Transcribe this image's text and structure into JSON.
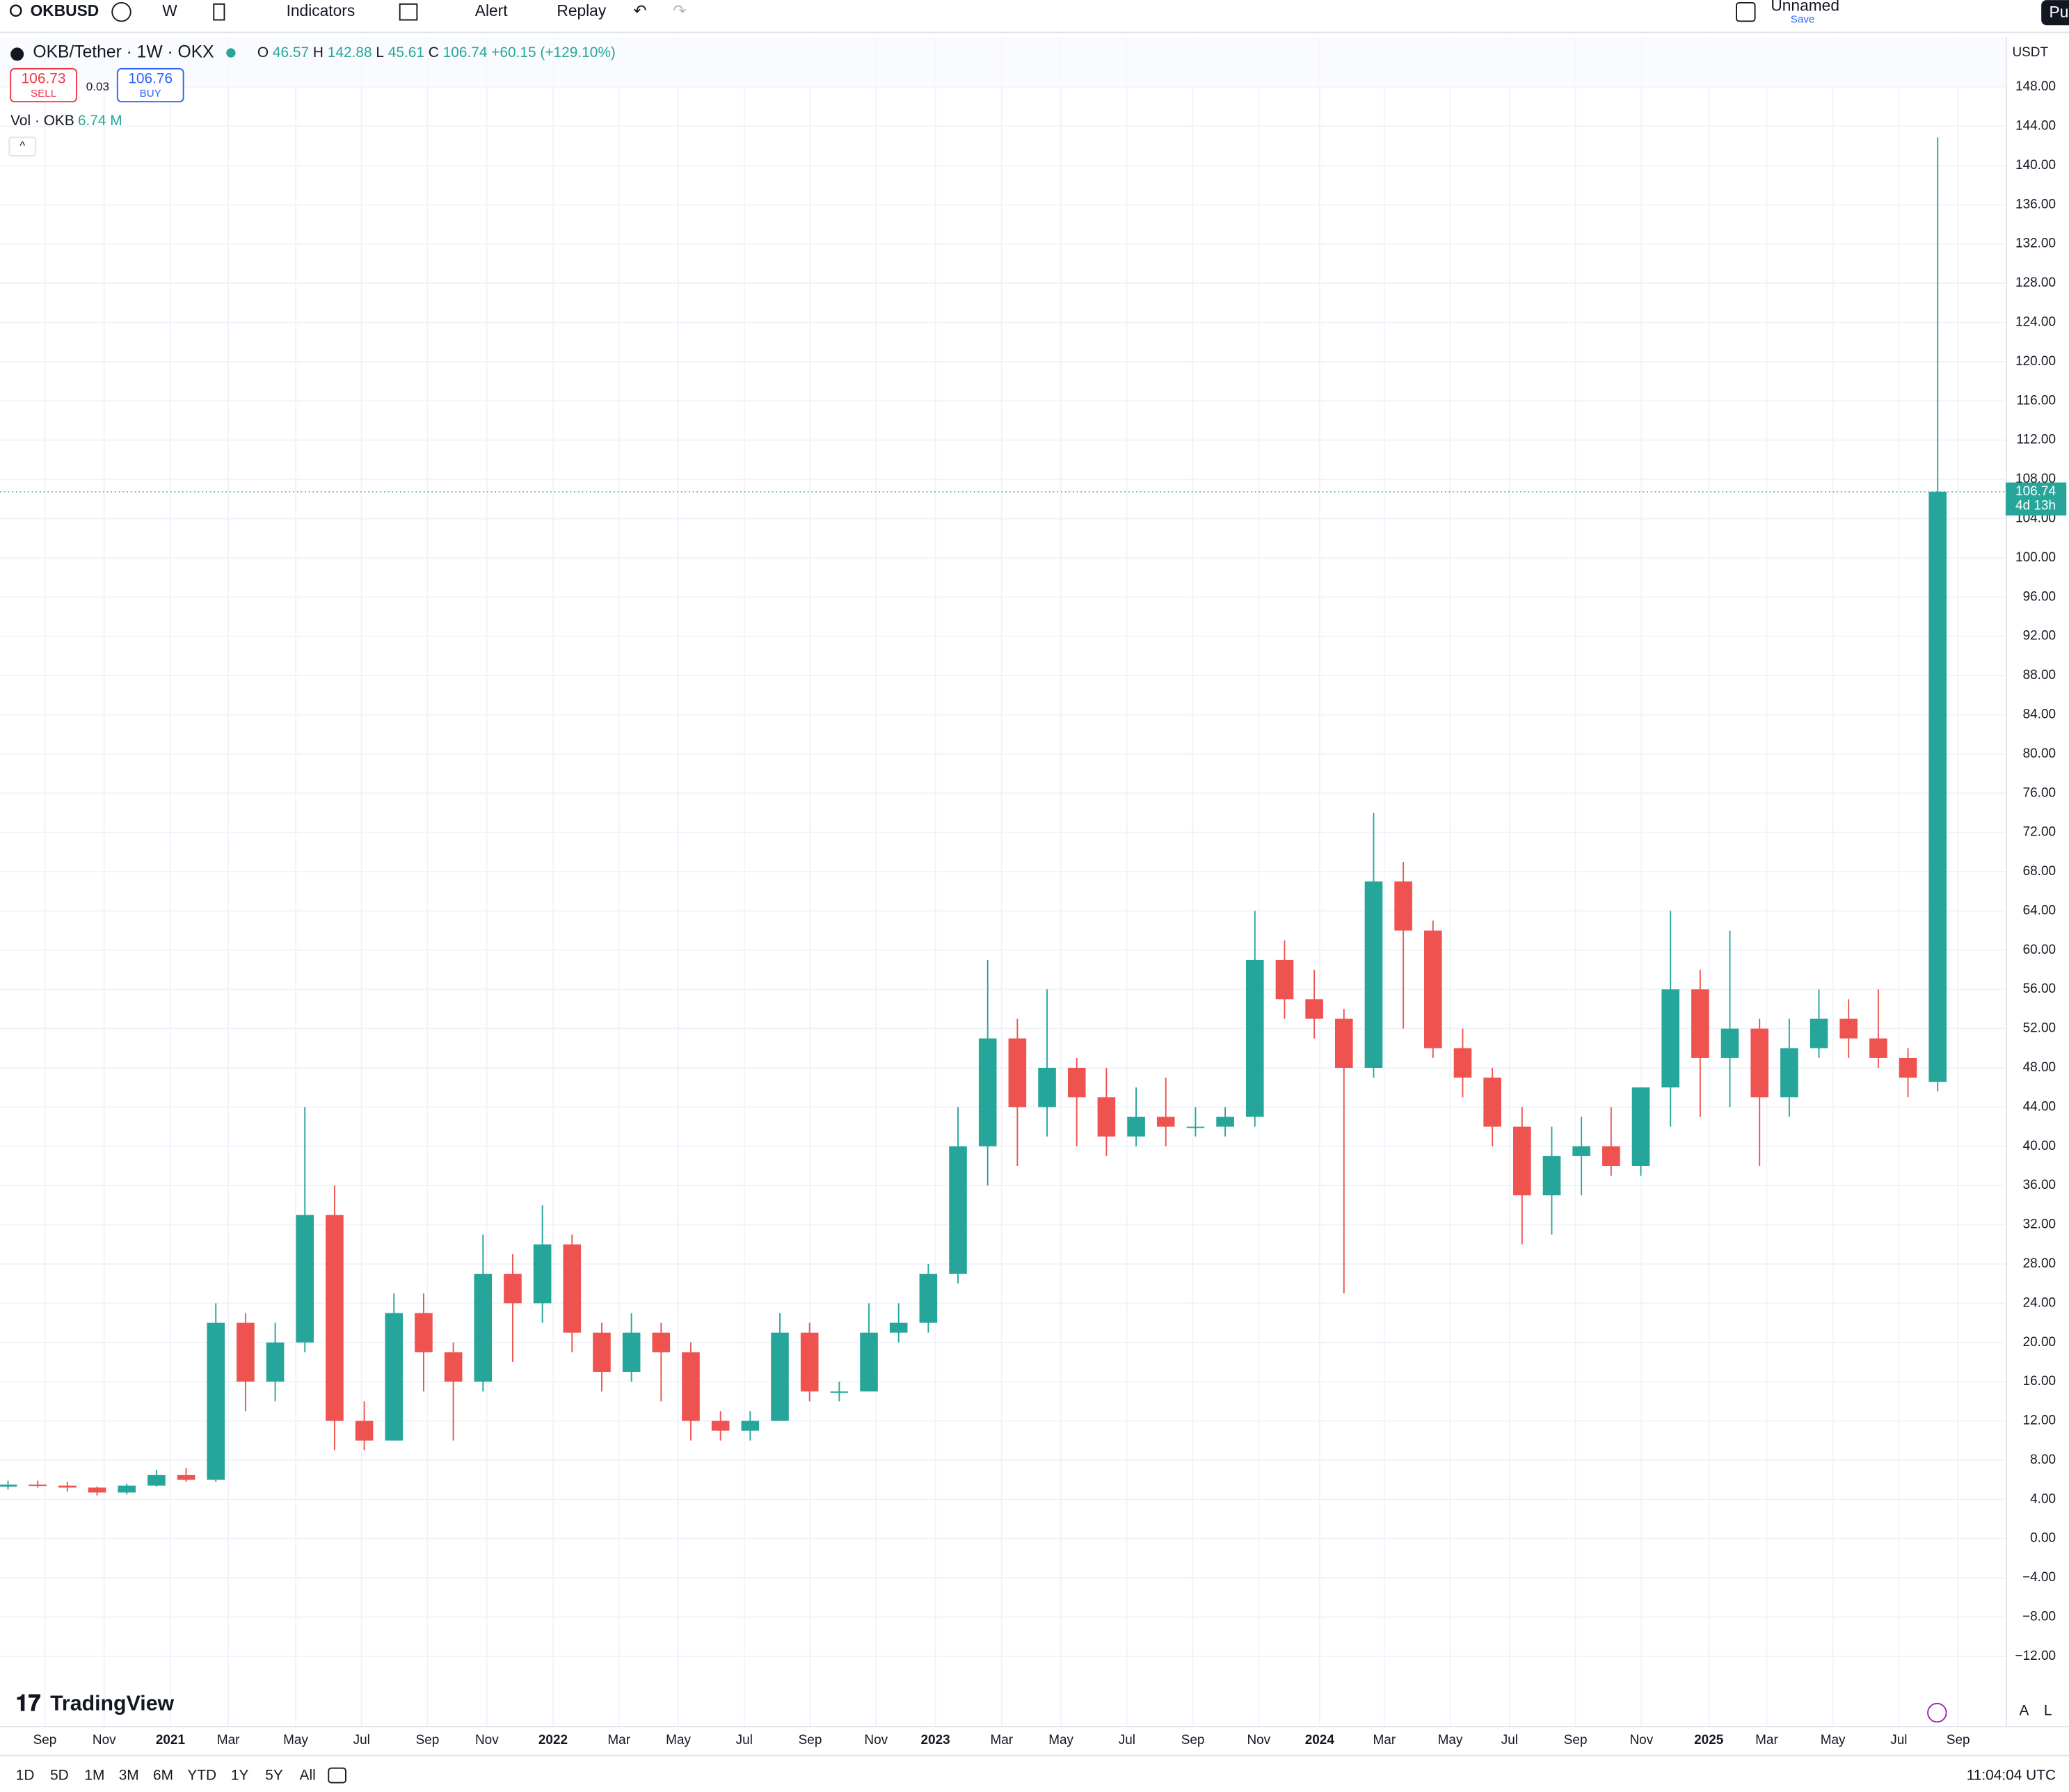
{
  "toolbar": {
    "symbol": "OKBUSD",
    "interval": "W",
    "indicators": "Indicators",
    "alert": "Alert",
    "replay": "Replay",
    "layout_name": "Unnamed",
    "layout_save": "Save",
    "publish": "Pu"
  },
  "legend": {
    "title": "OKB/Tether · 1W · OKX",
    "open_label": "O",
    "high_label": "H",
    "low_label": "L",
    "close_label": "C",
    "change": "+60.15 (+129.10%)",
    "sell_price": "106.73",
    "sell": "SELL",
    "spread": "0.03",
    "buy_price": "106.76",
    "buy": "BUY",
    "volume_label": "Vol · OKB",
    "volume": "6.74 M"
  },
  "price_axis": {
    "currency": "USDT",
    "countdown": "4d 13h"
  },
  "ranges": [
    "1D",
    "5D",
    "1M",
    "3M",
    "6M",
    "YTD",
    "1Y",
    "5Y",
    "All"
  ],
  "scale_buttons": [
    "A",
    "L"
  ],
  "logo": "TradingView",
  "clock": "11:04:04 UTC",
  "chart_data": {
    "type": "candlestick",
    "open": [
      5.3,
      5.5,
      5.4,
      5.2,
      4.7,
      5.4,
      6.5,
      6.0,
      22,
      16,
      20,
      33,
      12,
      10,
      23,
      19,
      16,
      27,
      24,
      30,
      21,
      17,
      21,
      19,
      12,
      11,
      12,
      21,
      15,
      15,
      21,
      22,
      27,
      40,
      51,
      44,
      48,
      45,
      41,
      43,
      42,
      42,
      43,
      59,
      55,
      53,
      48,
      67,
      62,
      50,
      47,
      42,
      35,
      39,
      40,
      38,
      46,
      56,
      49,
      52,
      45,
      50,
      53,
      51,
      49,
      46.57
    ],
    "high": [
      5.9,
      5.9,
      5.8,
      5.3,
      5.6,
      7.0,
      7.2,
      24,
      23,
      22,
      44,
      36,
      14,
      25,
      25,
      20,
      31,
      29,
      34,
      31,
      22,
      23,
      22,
      20,
      13,
      13,
      23,
      22,
      16,
      24,
      24,
      28,
      44,
      59,
      53,
      56,
      49,
      48,
      46,
      47,
      44,
      44,
      64,
      61,
      58,
      54,
      74,
      69,
      63,
      52,
      48,
      44,
      42,
      43,
      44,
      45,
      64,
      58,
      62,
      53,
      53,
      56,
      55,
      56,
      50,
      142.88
    ],
    "low": [
      5.0,
      5.2,
      4.8,
      4.4,
      4.5,
      5.3,
      5.8,
      5.8,
      13,
      14,
      19,
      9,
      9,
      10,
      15,
      10,
      15,
      18,
      22,
      19,
      15,
      16,
      14,
      10,
      10,
      10,
      12,
      14,
      14,
      15,
      20,
      21,
      26,
      36,
      38,
      41,
      40,
      39,
      40,
      40,
      41,
      41,
      42,
      53,
      51,
      25,
      47,
      52,
      49,
      45,
      40,
      30,
      31,
      35,
      37,
      37,
      42,
      43,
      44,
      38,
      43,
      49,
      49,
      48,
      45,
      45.61
    ],
    "close": [
      5.5,
      5.4,
      5.2,
      4.7,
      5.4,
      6.5,
      6.0,
      22,
      16,
      20,
      33,
      12,
      10,
      23,
      19,
      16,
      27,
      24,
      30,
      21,
      17,
      21,
      19,
      12,
      11,
      12,
      21,
      15,
      15,
      21,
      22,
      27,
      40,
      51,
      44,
      48,
      45,
      41,
      43,
      42,
      42,
      43,
      59,
      55,
      53,
      48,
      67,
      62,
      50,
      47,
      42,
      35,
      39,
      40,
      38,
      46,
      56,
      49,
      52,
      45,
      50,
      53,
      51,
      49,
      47,
      106.74
    ],
    "up_color": "#26a69a",
    "down_color": "#ef5350",
    "xlim": [
      -0.27,
      67.29
    ],
    "xticks": [
      {
        "value": 1.24,
        "label": "Sep"
      },
      {
        "value": 3.24,
        "label": "Nov"
      },
      {
        "value": 5.47,
        "label": "2021"
      },
      {
        "value": 7.42,
        "label": "Mar"
      },
      {
        "value": 9.69,
        "label": "May"
      },
      {
        "value": 11.91,
        "label": "Jul"
      },
      {
        "value": 14.13,
        "label": "Sep"
      },
      {
        "value": 16.13,
        "label": "Nov"
      },
      {
        "value": 18.36,
        "label": "2022"
      },
      {
        "value": 20.58,
        "label": "Mar"
      },
      {
        "value": 22.58,
        "label": "May"
      },
      {
        "value": 24.8,
        "label": "Jul"
      },
      {
        "value": 27.02,
        "label": "Sep"
      },
      {
        "value": 29.24,
        "label": "Nov"
      },
      {
        "value": 31.24,
        "label": "2023"
      },
      {
        "value": 33.47,
        "label": "Mar"
      },
      {
        "value": 35.47,
        "label": "May"
      },
      {
        "value": 37.69,
        "label": "Jul"
      },
      {
        "value": 39.91,
        "label": "Sep"
      },
      {
        "value": 42.13,
        "label": "Nov"
      },
      {
        "value": 44.18,
        "label": "2024"
      },
      {
        "value": 46.36,
        "label": "Mar"
      },
      {
        "value": 48.58,
        "label": "May"
      },
      {
        "value": 50.58,
        "label": "Jul"
      },
      {
        "value": 52.8,
        "label": "Sep"
      },
      {
        "value": 55.02,
        "label": "Nov"
      },
      {
        "value": 57.29,
        "label": "2025"
      },
      {
        "value": 59.24,
        "label": "Mar"
      },
      {
        "value": 61.47,
        "label": "May"
      },
      {
        "value": 63.69,
        "label": "Jul"
      },
      {
        "value": 65.69,
        "label": "Sep"
      }
    ],
    "ylim": [
      -19.1,
      153.1
    ],
    "yticks": [
      {
        "value": -12,
        "label": "−12.00"
      },
      {
        "value": -8,
        "label": "−8.00"
      },
      {
        "value": -4,
        "label": "−4.00"
      },
      {
        "value": 0,
        "label": "0.00"
      },
      {
        "value": 4,
        "label": "4.00"
      },
      {
        "value": 8,
        "label": "8.00"
      },
      {
        "value": 12,
        "label": "12.00"
      },
      {
        "value": 16,
        "label": "16.00"
      },
      {
        "value": 20,
        "label": "20.00"
      },
      {
        "value": 24,
        "label": "24.00"
      },
      {
        "value": 28,
        "label": "28.00"
      },
      {
        "value": 32,
        "label": "32.00"
      },
      {
        "value": 36,
        "label": "36.00"
      },
      {
        "value": 40,
        "label": "40.00"
      },
      {
        "value": 44,
        "label": "44.00"
      },
      {
        "value": 48,
        "label": "48.00"
      },
      {
        "value": 52,
        "label": "52.00"
      },
      {
        "value": 56,
        "label": "56.00"
      },
      {
        "value": 60,
        "label": "60.00"
      },
      {
        "value": 64,
        "label": "64.00"
      },
      {
        "value": 68,
        "label": "68.00"
      },
      {
        "value": 72,
        "label": "72.00"
      },
      {
        "value": 76,
        "label": "76.00"
      },
      {
        "value": 80,
        "label": "80.00"
      },
      {
        "value": 84,
        "label": "84.00"
      },
      {
        "value": 88,
        "label": "88.00"
      },
      {
        "value": 92,
        "label": "92.00"
      },
      {
        "value": 96,
        "label": "96.00"
      },
      {
        "value": 100,
        "label": "100.00"
      },
      {
        "value": 104,
        "label": "104.00"
      },
      {
        "value": 108,
        "label": "108.00"
      },
      {
        "value": 112,
        "label": "112.00"
      },
      {
        "value": 116,
        "label": "116.00"
      },
      {
        "value": 120,
        "label": "120.00"
      },
      {
        "value": 124,
        "label": "124.00"
      },
      {
        "value": 128,
        "label": "128.00"
      },
      {
        "value": 132,
        "label": "132.00"
      },
      {
        "value": 136,
        "label": "136.00"
      },
      {
        "value": 140,
        "label": "140.00"
      },
      {
        "value": 144,
        "label": "144.00"
      },
      {
        "value": 148,
        "label": "148.00"
      }
    ],
    "grid": true
  }
}
